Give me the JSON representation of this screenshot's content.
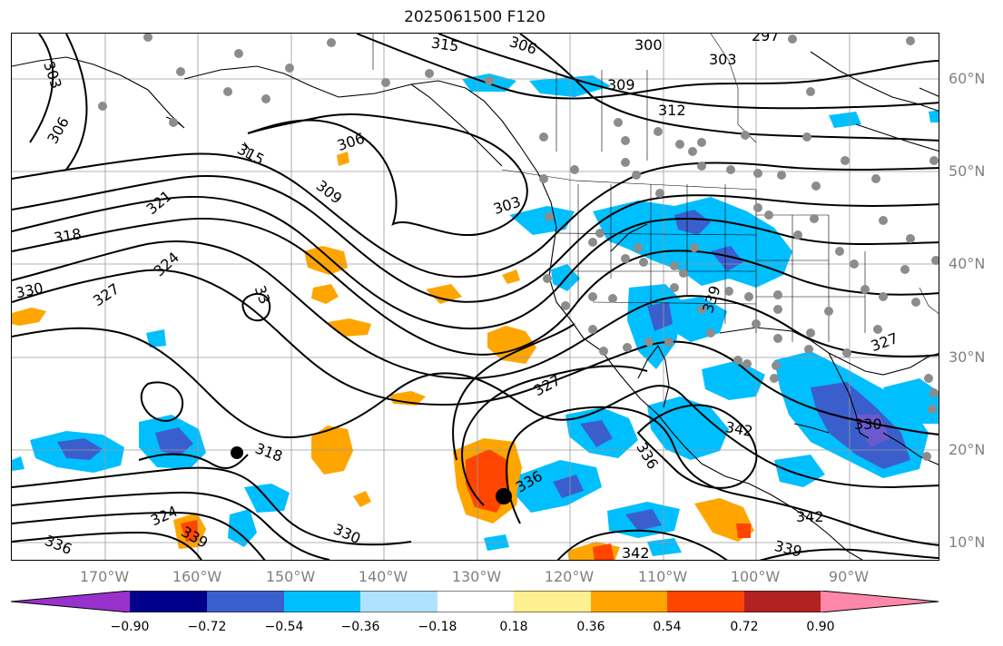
{
  "title": "2025061500 F120",
  "lat_labels": [
    "60°N",
    "50°N",
    "40°N",
    "30°N",
    "20°N",
    "10°N"
  ],
  "lon_labels": [
    "170°W",
    "160°W",
    "150°W",
    "140°W",
    "130°W",
    "120°W",
    "110°W",
    "100°W",
    "90°W"
  ],
  "colorbar": {
    "ticks": [
      "−0.90",
      "−0.72",
      "−0.54",
      "−0.36",
      "−0.18",
      "0.18",
      "0.36",
      "0.54",
      "0.72",
      "0.90"
    ],
    "colors": [
      "#9932cc",
      "#00008b",
      "#3a5fcd",
      "#00bfff",
      "#b0e2ff",
      "#ffffff",
      "#fff08f",
      "#ffa500",
      "#ff4500",
      "#b22222",
      "#ff88aa"
    ]
  },
  "contour_labels": [
    {
      "text": "315"
    },
    {
      "text": "306"
    },
    {
      "text": "300"
    },
    {
      "text": "297"
    },
    {
      "text": "303"
    },
    {
      "text": "309"
    },
    {
      "text": "312"
    },
    {
      "text": "303"
    },
    {
      "text": "306"
    },
    {
      "text": "306"
    },
    {
      "text": "315"
    },
    {
      "text": "309"
    },
    {
      "text": "303"
    },
    {
      "text": "321"
    },
    {
      "text": "318"
    },
    {
      "text": "324"
    },
    {
      "text": "327"
    },
    {
      "text": "330"
    },
    {
      "text": "339"
    },
    {
      "text": "327"
    },
    {
      "text": "330"
    },
    {
      "text": "336"
    },
    {
      "text": "318"
    },
    {
      "text": "336"
    },
    {
      "text": "324"
    },
    {
      "text": "339"
    },
    {
      "text": "336"
    },
    {
      "text": "330"
    },
    {
      "text": "342"
    },
    {
      "text": "342"
    },
    {
      "text": "339"
    },
    {
      "text": "342"
    },
    {
      "text": "327"
    },
    {
      "text": "33"
    }
  ]
}
